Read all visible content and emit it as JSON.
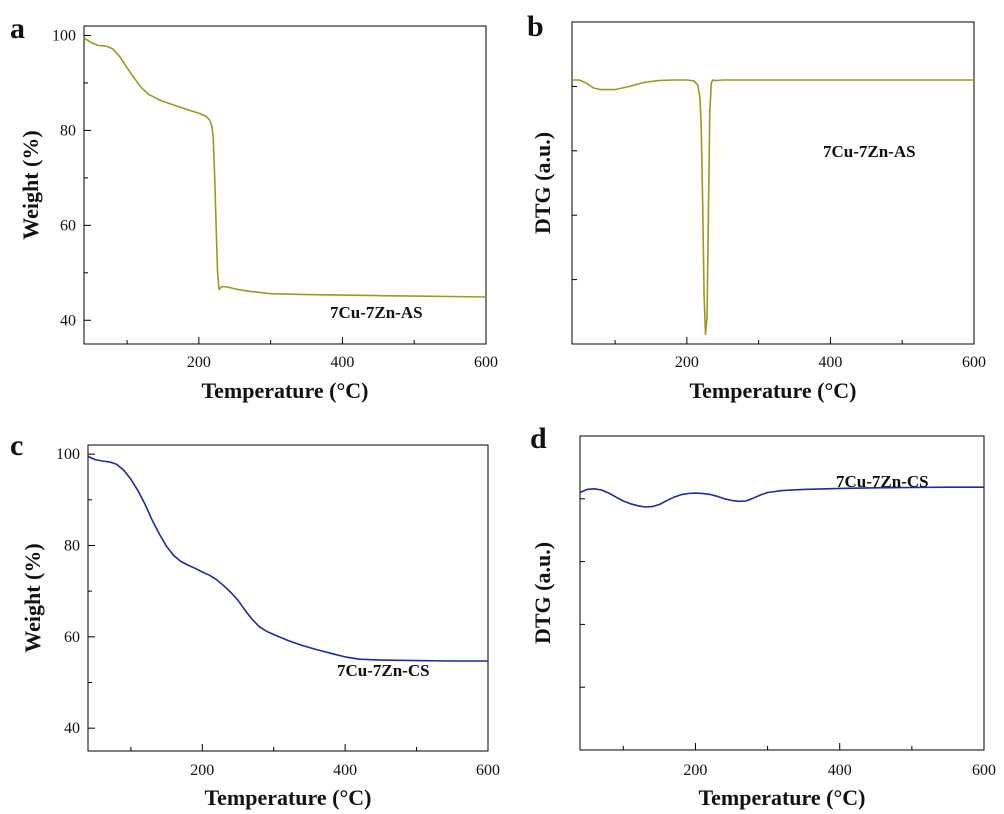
{
  "figure": {
    "panel_labels": [
      "a",
      "b",
      "c",
      "d"
    ]
  },
  "chart_data": [
    {
      "type": "line",
      "panel": "a",
      "xlabel": "Temperature (°C)",
      "ylabel": "Weight (%)",
      "xlim": [
        40,
        600
      ],
      "ylim": [
        35,
        102
      ],
      "xticks": [
        200,
        400,
        600
      ],
      "yticks": [
        40,
        60,
        80,
        100
      ],
      "xtick_labels": [
        "200",
        "400",
        "600"
      ],
      "ytick_labels": [
        "40",
        "60",
        "80",
        "100"
      ],
      "show_yticklabels": true,
      "grid": false,
      "color": "#9a9a1f",
      "series": [
        {
          "name": "7Cu-7Zn-AS",
          "x": [
            40,
            50,
            60,
            70,
            80,
            90,
            100,
            110,
            120,
            130,
            140,
            150,
            160,
            170,
            180,
            190,
            200,
            210,
            215,
            218,
            220,
            222,
            224,
            226,
            228,
            232,
            240,
            250,
            270,
            300,
            350,
            400,
            450,
            500,
            550,
            600
          ],
          "y": [
            99.5,
            98.5,
            97.9,
            97.8,
            97.2,
            95.5,
            93.2,
            91,
            89,
            87.6,
            86.8,
            86.1,
            85.6,
            85.1,
            84.6,
            84.1,
            83.6,
            83.0,
            82.2,
            81.0,
            78.5,
            70.0,
            60.0,
            50.5,
            46.5,
            47.1,
            47.0,
            46.6,
            46.1,
            45.6,
            45.4,
            45.3,
            45.2,
            45.1,
            45.0,
            44.9
          ]
        }
      ],
      "annotation": "7Cu-7Zn-AS"
    },
    {
      "type": "line",
      "panel": "b",
      "xlabel": "Temperature (°C)",
      "ylabel": "DTG (a.u.)",
      "xlim": [
        40,
        600
      ],
      "ylim": [
        0,
        100
      ],
      "xticks": [
        200,
        400,
        600
      ],
      "xtick_labels": [
        "200",
        "400",
        "600"
      ],
      "show_yticklabels": false,
      "grid": false,
      "color": "#9a9a1f",
      "series": [
        {
          "name": "7Cu-7Zn-AS",
          "x": [
            40,
            50,
            60,
            70,
            80,
            90,
            100,
            110,
            120,
            140,
            160,
            180,
            200,
            210,
            215,
            218,
            220,
            222,
            224,
            226,
            228,
            230,
            232,
            234,
            236,
            240,
            250,
            300,
            400,
            500,
            600
          ],
          "y": [
            82,
            82,
            81,
            79.5,
            79,
            79,
            79,
            79.5,
            80,
            81.2,
            81.8,
            82,
            82,
            81.7,
            80.5,
            77,
            68,
            45,
            15,
            3,
            8,
            40,
            72,
            81,
            82,
            81.8,
            82,
            82,
            82,
            82,
            82
          ]
        }
      ],
      "annotation": "7Cu-7Zn-AS"
    },
    {
      "type": "line",
      "panel": "c",
      "xlabel": "Temperature (°C)",
      "ylabel": "Weight (%)",
      "xlim": [
        40,
        600
      ],
      "ylim": [
        35,
        102
      ],
      "xticks": [
        200,
        400,
        600
      ],
      "yticks": [
        40,
        60,
        80,
        100
      ],
      "xtick_labels": [
        "200",
        "400",
        "600"
      ],
      "ytick_labels": [
        "40",
        "60",
        "80",
        "100"
      ],
      "show_yticklabels": true,
      "grid": false,
      "color": "#1f2aa0",
      "series": [
        {
          "name": "7Cu-7Zn-CS",
          "x": [
            40,
            50,
            60,
            70,
            80,
            90,
            100,
            110,
            120,
            130,
            140,
            150,
            160,
            170,
            180,
            190,
            200,
            210,
            220,
            230,
            240,
            250,
            260,
            270,
            280,
            290,
            300,
            320,
            340,
            360,
            380,
            400,
            420,
            450,
            500,
            550,
            600
          ],
          "y": [
            99.5,
            98.8,
            98.5,
            98.3,
            97.8,
            96.5,
            94.5,
            92,
            89,
            85.5,
            82.5,
            79.8,
            77.8,
            76.5,
            75.7,
            75.0,
            74.2,
            73.5,
            72.5,
            71.2,
            69.7,
            68.0,
            65.8,
            63.8,
            62.2,
            61.2,
            60.5,
            59.2,
            58.1,
            57.2,
            56.4,
            55.6,
            55.1,
            54.9,
            54.8,
            54.7,
            54.7
          ]
        }
      ],
      "annotation": "7Cu-7Zn-CS"
    },
    {
      "type": "line",
      "panel": "d",
      "xlabel": "Temperature (°C)",
      "ylabel": "DTG (a.u.)",
      "xlim": [
        40,
        600
      ],
      "ylim": [
        0,
        100
      ],
      "xticks": [
        200,
        400,
        600
      ],
      "xtick_labels": [
        "200",
        "400",
        "600"
      ],
      "show_yticklabels": false,
      "grid": false,
      "color": "#1f2aa0",
      "series": [
        {
          "name": "7Cu-7Zn-CS",
          "x": [
            40,
            50,
            60,
            70,
            80,
            90,
            100,
            110,
            120,
            130,
            140,
            150,
            160,
            170,
            180,
            190,
            200,
            210,
            220,
            230,
            240,
            250,
            260,
            270,
            280,
            290,
            300,
            320,
            350,
            400,
            450,
            500,
            550,
            600
          ],
          "y": [
            82,
            83,
            83.2,
            82.8,
            81.8,
            80.5,
            79.3,
            78.4,
            77.8,
            77.4,
            77.5,
            78.2,
            79.4,
            80.5,
            81.3,
            81.7,
            81.8,
            81.7,
            81.4,
            80.8,
            80,
            79.5,
            79.2,
            79.3,
            80.2,
            81.2,
            82.0,
            82.6,
            83.0,
            83.3,
            83.5,
            83.6,
            83.7,
            83.7
          ]
        }
      ],
      "annotation": "7Cu-7Zn-CS"
    }
  ]
}
